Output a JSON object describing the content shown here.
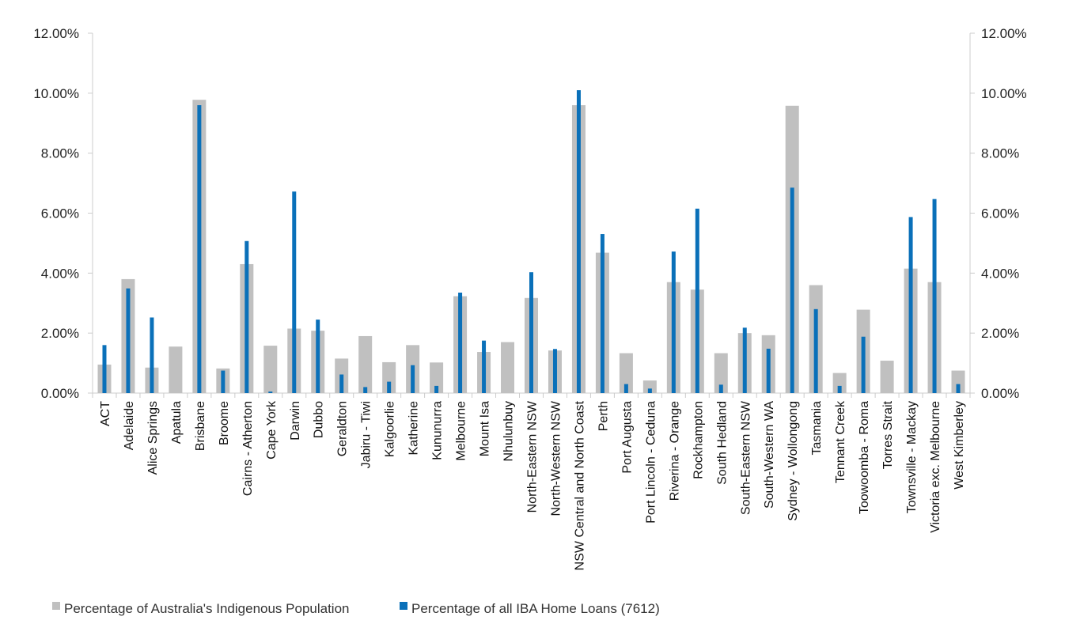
{
  "chart_data": {
    "type": "bar",
    "title": "",
    "xlabel": "",
    "ylabel": "",
    "ylim": [
      0,
      12
    ],
    "y_ticks": [
      "0.00%",
      "2.00%",
      "4.00%",
      "6.00%",
      "8.00%",
      "10.00%",
      "12.00%"
    ],
    "y_tick_values": [
      0,
      2,
      4,
      6,
      8,
      10,
      12
    ],
    "secondary_axis": true,
    "grid": false,
    "legend_placement": "bottom-left",
    "colors": {
      "population": "#c0c0c0",
      "loans": "#0a70b9",
      "axis": "#cccccc"
    },
    "categories": [
      "ACT",
      "Adelaide",
      "Alice Springs",
      "Apatula",
      "Brisbane",
      "Broome",
      "Cairns - Atherton",
      "Cape York",
      "Darwin",
      "Dubbo",
      "Geraldton",
      "Jabiru - Tiwi",
      "Kalgoorlie",
      "Katherine",
      "Kununurra",
      "Melbourne",
      "Mount Isa",
      "Nhulunbuy",
      "North-Eastern NSW",
      "North-Western NSW",
      "NSW Central and North Coast",
      "Perth",
      "Port Augusta",
      "Port Lincoln - Ceduna",
      "Riverina - Orange",
      "Rockhampton",
      "South Hedland",
      "South-Eastern NSW",
      "South-Western WA",
      "Sydney - Wollongong",
      "Tasmania",
      "Tennant Creek",
      "Toowoomba - Roma",
      "Torres Strait",
      "Townsville - Mackay",
      "Victoria exc. Melbourne",
      "West Kimberley"
    ],
    "series": [
      {
        "name": "Percentage of Australia's Indigenous Population",
        "values": [
          0.95,
          3.8,
          0.85,
          1.55,
          9.78,
          0.82,
          4.3,
          1.58,
          2.15,
          2.08,
          1.15,
          1.9,
          1.03,
          1.6,
          1.02,
          3.23,
          1.37,
          1.7,
          3.17,
          1.42,
          9.6,
          4.68,
          1.33,
          0.42,
          3.7,
          3.45,
          1.33,
          2.0,
          1.93,
          9.58,
          3.6,
          0.67,
          2.78,
          1.08,
          4.15,
          3.7,
          0.75
        ]
      },
      {
        "name": "Percentage of all IBA Home Loans (7612)",
        "values": [
          1.6,
          3.49,
          2.52,
          0.0,
          9.6,
          0.75,
          5.07,
          0.05,
          6.72,
          2.45,
          0.62,
          0.2,
          0.38,
          0.93,
          0.24,
          3.35,
          1.75,
          0.0,
          4.03,
          1.47,
          10.1,
          5.3,
          0.3,
          0.15,
          4.72,
          6.15,
          0.28,
          2.18,
          1.48,
          6.85,
          2.8,
          0.24,
          1.88,
          0.0,
          5.87,
          6.47,
          0.3
        ]
      }
    ]
  }
}
